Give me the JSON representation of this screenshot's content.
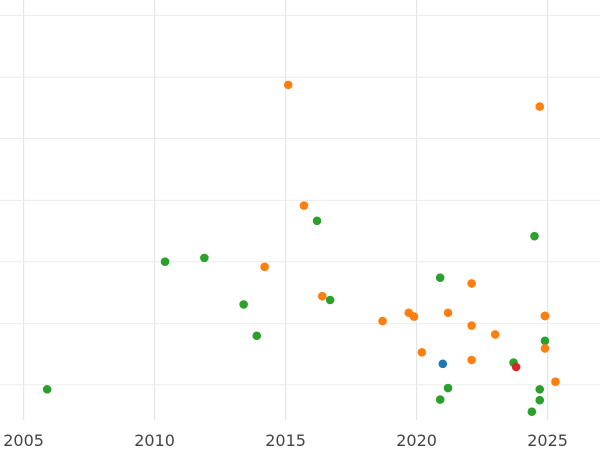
{
  "chart_data": {
    "type": "scatter",
    "title": "",
    "xlabel": "",
    "ylabel": "",
    "xlim": [
      2004.1,
      2027.0
    ],
    "ylim": [
      -0.08,
      6.5
    ],
    "xticks": [
      2005,
      2010,
      2015,
      2020,
      2025
    ],
    "ytick_gridlines": [
      0.47,
      1.43,
      2.4,
      3.36,
      4.33,
      5.29,
      6.26
    ],
    "grid": true,
    "legend": "none",
    "series": [
      {
        "color": "#2ca02c",
        "points": [
          {
            "x": 2005.9,
            "y": 0.4
          },
          {
            "x": 2010.4,
            "y": 2.4
          },
          {
            "x": 2011.9,
            "y": 2.46
          },
          {
            "x": 2013.4,
            "y": 1.73
          },
          {
            "x": 2013.9,
            "y": 1.24
          },
          {
            "x": 2016.2,
            "y": 3.04
          },
          {
            "x": 2016.7,
            "y": 1.8
          },
          {
            "x": 2020.9,
            "y": 2.15
          },
          {
            "x": 2020.9,
            "y": 0.24
          },
          {
            "x": 2021.2,
            "y": 0.42
          },
          {
            "x": 2023.7,
            "y": 0.82
          },
          {
            "x": 2024.4,
            "y": 0.05
          },
          {
            "x": 2024.5,
            "y": 2.8
          },
          {
            "x": 2024.7,
            "y": 0.4
          },
          {
            "x": 2024.7,
            "y": 0.23
          },
          {
            "x": 2024.9,
            "y": 1.55
          },
          {
            "x": 2024.9,
            "y": 1.16
          }
        ]
      },
      {
        "color": "#ff7f0e",
        "points": [
          {
            "x": 2015.1,
            "y": 5.17
          },
          {
            "x": 2015.7,
            "y": 3.28
          },
          {
            "x": 2014.2,
            "y": 2.32
          },
          {
            "x": 2016.4,
            "y": 1.86
          },
          {
            "x": 2018.7,
            "y": 1.47
          },
          {
            "x": 2019.7,
            "y": 1.6
          },
          {
            "x": 2019.9,
            "y": 1.54
          },
          {
            "x": 2020.2,
            "y": 0.98
          },
          {
            "x": 2021.2,
            "y": 1.6
          },
          {
            "x": 2022.1,
            "y": 2.06
          },
          {
            "x": 2022.1,
            "y": 1.4
          },
          {
            "x": 2022.1,
            "y": 0.86
          },
          {
            "x": 2023.0,
            "y": 1.26
          },
          {
            "x": 2024.7,
            "y": 4.83
          },
          {
            "x": 2024.9,
            "y": 1.55
          },
          {
            "x": 2024.9,
            "y": 1.04
          },
          {
            "x": 2025.3,
            "y": 0.52
          }
        ]
      },
      {
        "color": "#1f77b4",
        "points": [
          {
            "x": 2021.0,
            "y": 0.8
          }
        ]
      },
      {
        "color": "#d62728",
        "points": [
          {
            "x": 2023.8,
            "y": 0.75
          }
        ]
      }
    ]
  }
}
